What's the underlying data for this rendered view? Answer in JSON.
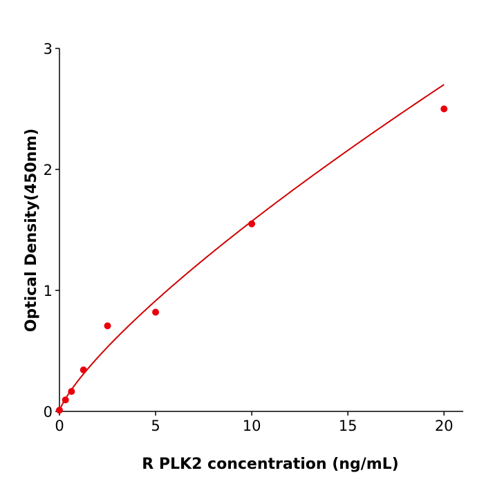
{
  "chart_data": {
    "type": "scatter",
    "title": "",
    "xlabel": "R  PLK2 concentration (ng/mL)",
    "ylabel": "Optical Density(450nm)",
    "xlim": [
      0,
      21
    ],
    "ylim": [
      0,
      3
    ],
    "xticks": [
      "0",
      "5",
      "10",
      "15",
      "20"
    ],
    "yticks": [
      "0",
      "1",
      "2",
      "3"
    ],
    "grid": false,
    "legend": "none",
    "series": [
      {
        "x": [
          0,
          0.3125,
          0.625,
          1.25,
          2.5,
          5,
          10,
          20
        ],
        "y": [
          0.01,
          0.095,
          0.165,
          0.343,
          0.707,
          0.82,
          1.55,
          2.5
        ],
        "color": "#e8000b",
        "fit_line": true
      }
    ]
  }
}
